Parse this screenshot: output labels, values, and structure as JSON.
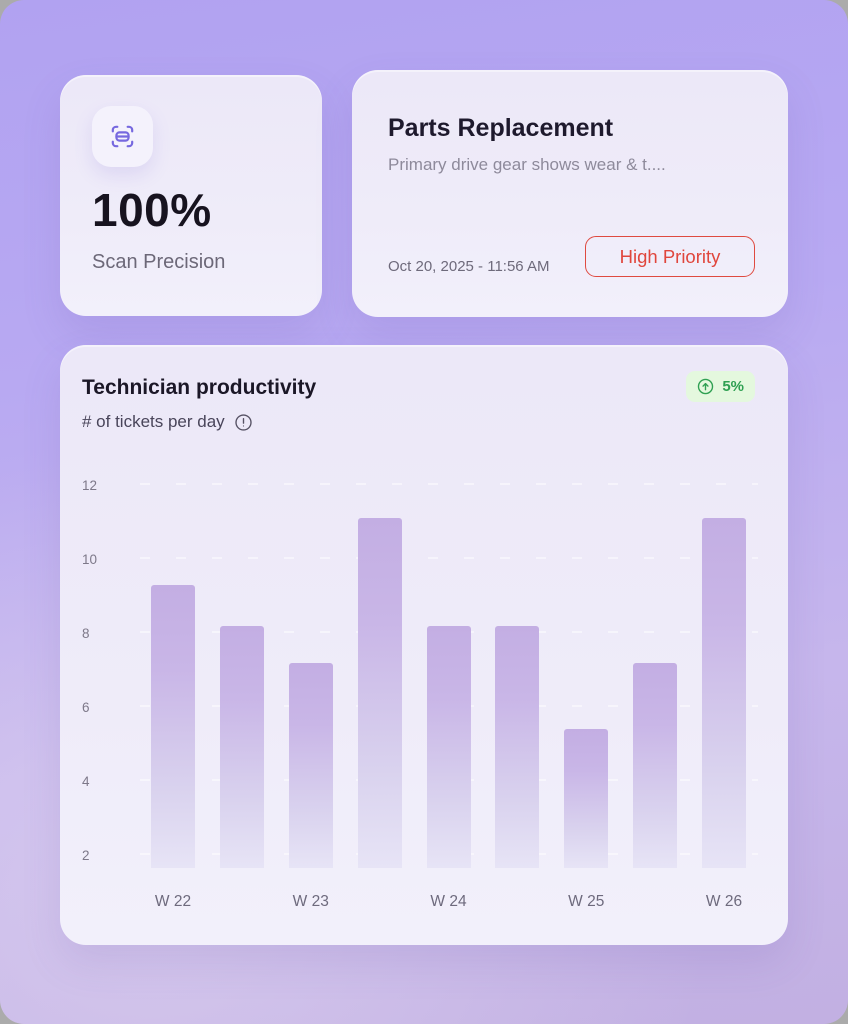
{
  "cards": {
    "precision": {
      "icon": "scan-icon",
      "value": "100%",
      "label": "Scan Precision"
    },
    "ticket": {
      "title": "Parts Replacement",
      "description": "Primary drive gear shows wear & t....",
      "timestamp": "Oct 20, 2025 - 11:56 AM",
      "priority_label": "High Priority",
      "priority_color": "#e0463c"
    }
  },
  "chart_card": {
    "trend": {
      "value": "5%",
      "direction": "up",
      "color": "#2fa052",
      "badge_bg": "#e4f8de"
    }
  },
  "chart_data": {
    "type": "bar",
    "title": "Technician productivity",
    "subtitle": "# of tickets per day",
    "xlabel": "",
    "ylabel": "# of tickets per day",
    "categories": [
      "W 22",
      "",
      "W 23",
      "",
      "W 24",
      "",
      "W 25",
      "",
      "W 26"
    ],
    "values": [
      9.3,
      8.2,
      7.2,
      11.1,
      8.2,
      8.2,
      5.4,
      7.2,
      11.1
    ],
    "yticks": [
      2,
      4,
      6,
      8,
      10,
      12
    ],
    "ylim": [
      1.65,
      12.3
    ],
    "grid": "dashed-horizontal-white",
    "legend": "none",
    "bar_color_top": "#c3aee3",
    "bar_color_bottom": "#e7e4f6"
  },
  "colors": {
    "background_top": "#b1a2f1",
    "background_bottom": "#c2b0e2",
    "card_bg": "#ece8f8",
    "accent_purple": "#7668df",
    "priority_red": "#e0463c",
    "trend_green": "#2fa052"
  }
}
